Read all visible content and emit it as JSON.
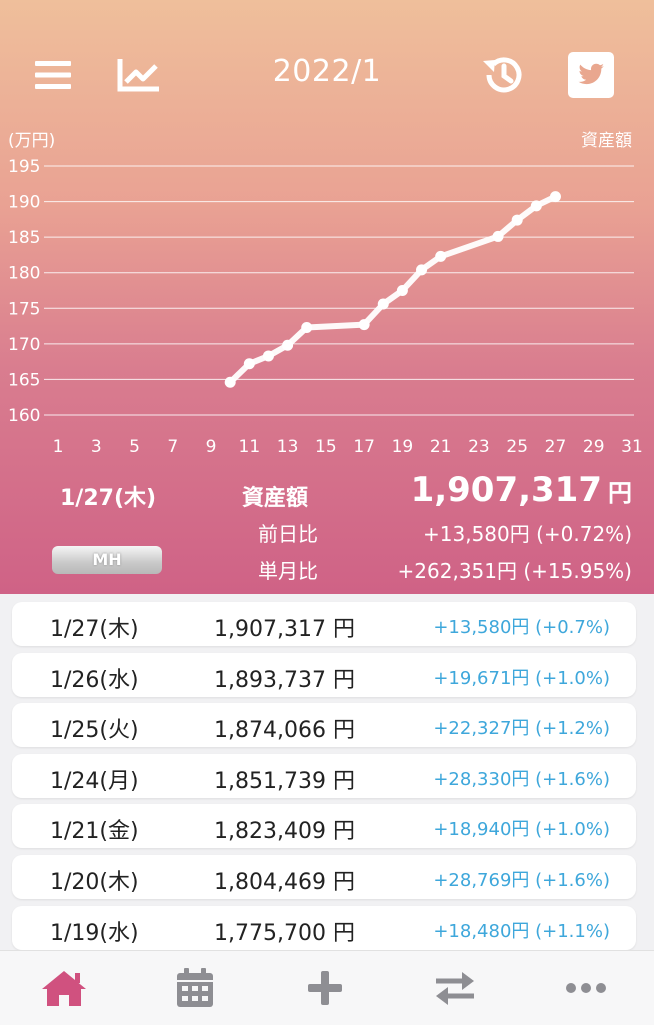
{
  "header": {
    "title": "2022/1",
    "icons": [
      "menu-icon",
      "chart-icon",
      "history-icon",
      "twitter-icon"
    ]
  },
  "chart_data": {
    "type": "line",
    "unit_label": "(万円)",
    "series_label": "資産額",
    "x_ticks": [
      "1",
      "3",
      "5",
      "7",
      "9",
      "11",
      "13",
      "15",
      "17",
      "19",
      "21",
      "23",
      "25",
      "27",
      "29",
      "31"
    ],
    "y_ticks": [
      "195",
      "190",
      "185",
      "180",
      "175",
      "170",
      "165",
      "160"
    ],
    "xlim": [
      1,
      31
    ],
    "ylim": [
      160,
      195
    ],
    "series": [
      {
        "x": [
          10,
          11,
          12,
          13,
          14,
          17,
          18,
          19,
          20,
          21,
          24,
          25,
          26,
          27
        ],
        "y": [
          164.6,
          167.2,
          168.3,
          169.8,
          172.3,
          172.7,
          175.6,
          177.5,
          180.4,
          182.3,
          185.1,
          187.4,
          189.4,
          190.7
        ]
      }
    ],
    "colors": {
      "line": "#ffffff",
      "grid": "#ffffff"
    }
  },
  "summary": {
    "date": "1/27(木)",
    "asset_label": "資産額",
    "asset_value": "1,907,317",
    "yen": "円",
    "day_label": "前日比",
    "day_value": "+13,580円 (+0.72%)",
    "month_label": "単月比",
    "month_value": "+262,351円 (+15.95%)",
    "mh_button": "MH"
  },
  "rows": [
    {
      "date": "1/27(木)",
      "amount": "1,907,317 円",
      "change": "+13,580円 (+0.7%)"
    },
    {
      "date": "1/26(水)",
      "amount": "1,893,737 円",
      "change": "+19,671円 (+1.0%)"
    },
    {
      "date": "1/25(火)",
      "amount": "1,874,066 円",
      "change": "+22,327円 (+1.2%)"
    },
    {
      "date": "1/24(月)",
      "amount": "1,851,739 円",
      "change": "+28,330円 (+1.6%)"
    },
    {
      "date": "1/21(金)",
      "amount": "1,823,409 円",
      "change": "+18,940円 (+1.0%)"
    },
    {
      "date": "1/20(木)",
      "amount": "1,804,469 円",
      "change": "+28,769円 (+1.6%)"
    },
    {
      "date": "1/19(水)",
      "amount": "1,775,700 円",
      "change": "+18,480円 (+1.1%)"
    }
  ],
  "tabbar": {
    "icons": [
      "home-icon",
      "calendar-icon",
      "plus-icon",
      "transfer-icon",
      "more-icon"
    ],
    "active_color": "#d0517f",
    "inactive_color": "#8e8e93"
  }
}
